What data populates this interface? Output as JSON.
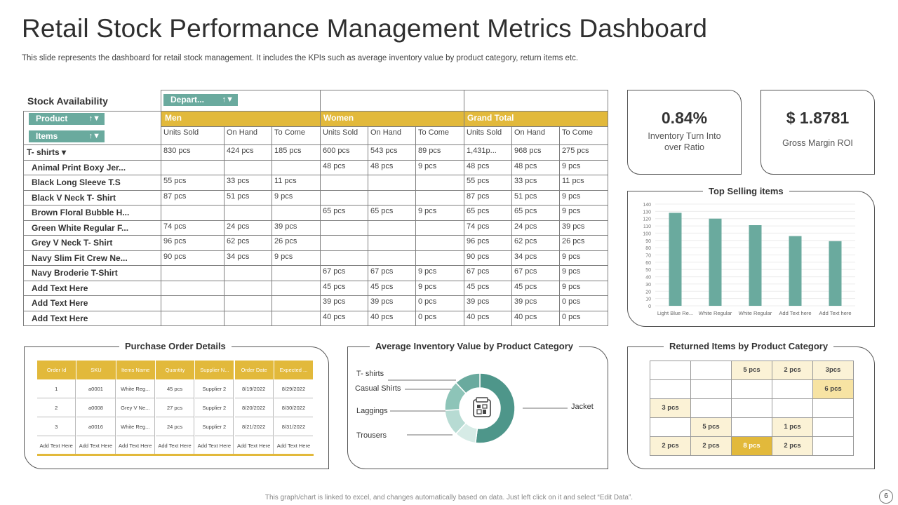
{
  "title": "Retail Stock Performance Management Metrics Dashboard",
  "subtitle": "This slide represents the dashboard for retail stock management. It includes the KPIs such as average inventory value by product category, return items etc.",
  "footer": "This graph/chart is linked to excel, and changes automatically based on data. Just left click on it and select “Edit Data”.",
  "page_number": "6",
  "colors": {
    "gold": "#e2b93b",
    "teal": "#6aaa9e",
    "lightgold": "#fbf2d6",
    "midgold": "#f7e3a3"
  },
  "stock": {
    "title": "Stock Availability",
    "filters": {
      "department": "Depart...",
      "product": "Product",
      "items": "Items"
    },
    "groups": [
      "Men",
      "Women",
      "Grand Total"
    ],
    "columns": [
      "Units Sold",
      "On Hand",
      "To Come",
      "Units Sold",
      "On Hand",
      "To Come",
      "Units Sold",
      "On Hand",
      "To Come"
    ],
    "rows": [
      {
        "label": "T- shirts ▾",
        "cells": [
          "830 pcs",
          "424 pcs",
          "185 pcs",
          "600 pcs",
          "543 pcs",
          "89 pcs",
          "1,431p...",
          "968 pcs",
          "275 pcs"
        ]
      },
      {
        "label": "Animal Print Boxy Jer...",
        "cells": [
          "",
          "",
          "",
          "48 pcs",
          "48 pcs",
          "9 pcs",
          "48 pcs",
          "48 pcs",
          "9 pcs"
        ]
      },
      {
        "label": "Black Long  Sleeve T.S",
        "cells": [
          "55 pcs",
          "33 pcs",
          "11 pcs",
          "",
          "",
          "",
          "55 pcs",
          "33 pcs",
          "11 pcs"
        ]
      },
      {
        "label": "Black V Neck T- Shirt",
        "cells": [
          "87 pcs",
          "51 pcs",
          "9 pcs",
          "",
          "",
          "",
          "87 pcs",
          "51 pcs",
          "9 pcs"
        ]
      },
      {
        "label": "Brown Floral Bubble H...",
        "cells": [
          "",
          "",
          "",
          "65 pcs",
          "65 pcs",
          "9 pcs",
          "65 pcs",
          "65 pcs",
          "9 pcs"
        ]
      },
      {
        "label": "Green White Regular F...",
        "cells": [
          "74 pcs",
          "24 pcs",
          "39 pcs",
          "",
          "",
          "",
          "74 pcs",
          "24 pcs",
          "39 pcs"
        ]
      },
      {
        "label": "Grey V Neck T- Shirt",
        "cells": [
          "96 pcs",
          "62 pcs",
          "26 pcs",
          "",
          "",
          "",
          "96 pcs",
          "62 pcs",
          "26 pcs"
        ]
      },
      {
        "label": "Navy  Slim Fit Crew Ne...",
        "cells": [
          "90 pcs",
          "34 pcs",
          "9 pcs",
          "",
          "",
          "",
          "90 pcs",
          "34 pcs",
          "9 pcs"
        ]
      },
      {
        "label": "Navy Broderie T-Shirt",
        "cells": [
          "",
          "",
          "",
          "67 pcs",
          "67 pcs",
          "9 pcs",
          "67 pcs",
          "67 pcs",
          "9 pcs"
        ]
      },
      {
        "label": "Add Text Here",
        "cells": [
          "",
          "",
          "",
          "45 pcs",
          "45 pcs",
          "9 pcs",
          "45 pcs",
          "45 pcs",
          "9 pcs"
        ]
      },
      {
        "label": "Add Text Here",
        "cells": [
          "",
          "",
          "",
          "39 pcs",
          "39 pcs",
          "0 pcs",
          "39 pcs",
          "39 pcs",
          "0 pcs"
        ]
      },
      {
        "label": "Add Text Here",
        "cells": [
          "",
          "",
          "",
          "40 pcs",
          "40 pcs",
          "0 pcs",
          "40 pcs",
          "40 pcs",
          "0 pcs"
        ]
      }
    ]
  },
  "kpis": [
    {
      "value": "0.84%",
      "label": "Inventory  Turn  Into over Ratio"
    },
    {
      "value": "$ 1.8781",
      "label": "Gross Margin ROI"
    }
  ],
  "purchase": {
    "title": "Purchase Order Details",
    "headers": [
      "Order Id",
      "SKU",
      "Items Name",
      "Quantity",
      "Supplier  N...",
      "Order Date",
      "Expected  ..."
    ],
    "rows": [
      [
        "1",
        "a0001",
        "White Reg...",
        "45 pcs",
        "Supplier  2",
        "8/19/2022",
        "8/29/2022"
      ],
      [
        "2",
        "a0008",
        "Grey V Ne...",
        "27 pcs",
        "Supplier  2",
        "8/20/2022",
        "8/30/2022"
      ],
      [
        "3",
        "a0016",
        "White Reg...",
        "24 pcs",
        "Supplier  2",
        "8/21/2022",
        "8/31/2022"
      ],
      [
        "Add Text Here",
        "Add Text Here",
        "Add Text Here",
        "Add Text Here",
        "Add Text Here",
        "Add Text Here",
        "Add Text Here"
      ]
    ]
  },
  "returned": {
    "title": "Returned Items by Product Category",
    "grid": [
      [
        "",
        "",
        "5 pcs",
        "2 pcs",
        "3pcs"
      ],
      [
        "",
        "",
        "",
        "",
        "6 pcs"
      ],
      [
        "3 pcs",
        "",
        "",
        "",
        ""
      ],
      [
        "",
        "5 pcs",
        "",
        "1 pcs",
        ""
      ],
      [
        "2 pcs",
        "2 pcs",
        "8 pcs",
        "2 pcs",
        ""
      ]
    ]
  },
  "chart_data": [
    {
      "type": "bar",
      "title": "Top Selling items",
      "categories": [
        "Light  Blue Re...",
        "White Regular",
        "White Regular",
        "Add Text here",
        "Add Text here"
      ],
      "values": [
        128,
        120,
        111,
        96,
        89
      ],
      "ylim": [
        0,
        140
      ],
      "yticks": [
        "0",
        "10",
        "20",
        "30",
        "40",
        "50",
        "60",
        "70",
        "80",
        "90",
        "100",
        "110",
        "120",
        "130",
        "140"
      ],
      "grid": true,
      "color": "#6aaa9e"
    },
    {
      "type": "pie",
      "title": "Average Inventory Value by Product Category",
      "labels": [
        "Jacket",
        "T- shirts",
        "Casual Shirts",
        "Laggings",
        "Trousers"
      ],
      "values": [
        52,
        10,
        12,
        14,
        12
      ],
      "colors": [
        "#4e968a",
        "#d6ebe6",
        "#b7dbd3",
        "#8dc4b8",
        "#6aaa9e"
      ]
    }
  ]
}
